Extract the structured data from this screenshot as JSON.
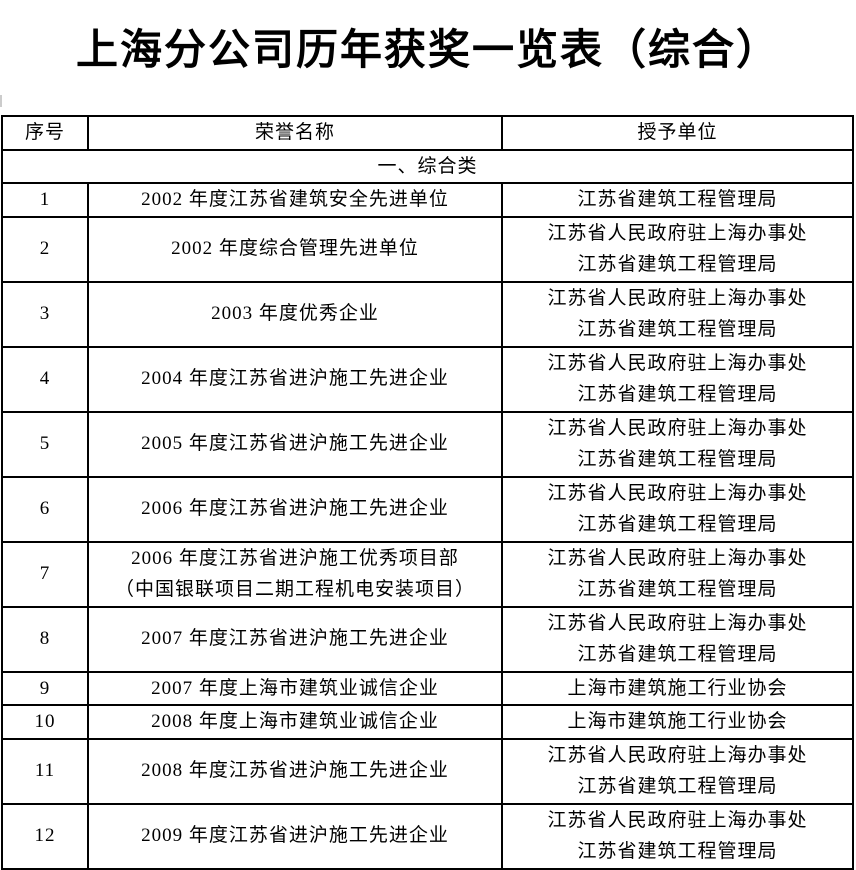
{
  "title": "上海分公司历年获奖一览表（综合）",
  "table": {
    "headers": [
      "序号",
      "荣誉名称",
      "授予单位"
    ],
    "section": "一、综合类",
    "rows": [
      {
        "no": "1",
        "name": [
          "2002 年度江苏省建筑安全先进单位"
        ],
        "org": [
          "江苏省建筑工程管理局"
        ]
      },
      {
        "no": "2",
        "name": [
          "2002 年度综合管理先进单位"
        ],
        "org": [
          "江苏省人民政府驻上海办事处",
          "江苏省建筑工程管理局"
        ]
      },
      {
        "no": "3",
        "name": [
          "2003 年度优秀企业"
        ],
        "org": [
          "江苏省人民政府驻上海办事处",
          "江苏省建筑工程管理局"
        ]
      },
      {
        "no": "4",
        "name": [
          "2004 年度江苏省进沪施工先进企业"
        ],
        "org": [
          "江苏省人民政府驻上海办事处",
          "江苏省建筑工程管理局"
        ]
      },
      {
        "no": "5",
        "name": [
          "2005 年度江苏省进沪施工先进企业"
        ],
        "org": [
          "江苏省人民政府驻上海办事处",
          "江苏省建筑工程管理局"
        ]
      },
      {
        "no": "6",
        "name": [
          "2006 年度江苏省进沪施工先进企业"
        ],
        "org": [
          "江苏省人民政府驻上海办事处",
          "江苏省建筑工程管理局"
        ]
      },
      {
        "no": "7",
        "name": [
          "2006 年度江苏省进沪施工优秀项目部",
          "（中国银联项目二期工程机电安装项目）"
        ],
        "org": [
          "江苏省人民政府驻上海办事处",
          "江苏省建筑工程管理局"
        ]
      },
      {
        "no": "8",
        "name": [
          "2007 年度江苏省进沪施工先进企业"
        ],
        "org": [
          "江苏省人民政府驻上海办事处",
          "江苏省建筑工程管理局"
        ]
      },
      {
        "no": "9",
        "name": [
          "2007 年度上海市建筑业诚信企业"
        ],
        "org": [
          "上海市建筑施工行业协会"
        ]
      },
      {
        "no": "10",
        "name": [
          "2008 年度上海市建筑业诚信企业"
        ],
        "org": [
          "上海市建筑施工行业协会"
        ]
      },
      {
        "no": "11",
        "name": [
          "2008 年度江苏省进沪施工先进企业"
        ],
        "org": [
          "江苏省人民政府驻上海办事处",
          "江苏省建筑工程管理局"
        ]
      },
      {
        "no": "12",
        "name": [
          "2009 年度江苏省进沪施工先进企业"
        ],
        "org": [
          "江苏省人民政府驻上海办事处",
          "江苏省建筑工程管理局"
        ]
      }
    ]
  }
}
